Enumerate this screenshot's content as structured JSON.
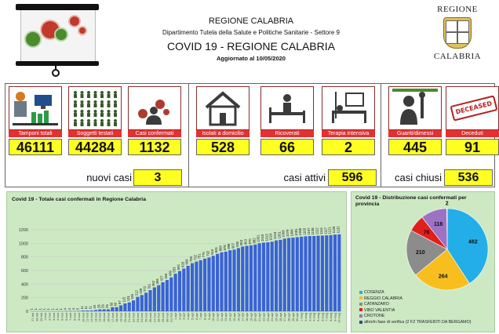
{
  "header": {
    "region": "REGIONE CALABRIA",
    "department": "Dipartimento Tutela della Salute e Politiche Sanitarie - Settore 9",
    "title": "COVID 19 - REGIONE CALABRIA",
    "updated": "Aggiornato al  10/05/2020",
    "coat_top": "REGIONE",
    "coat_bottom": "CALABRIA"
  },
  "icons": [
    "virus-icon",
    "lab-test-icon",
    "tested-people-icon",
    "confirmed-case-icon",
    "home-isolation-icon",
    "hospital-bed-icon",
    "intensive-care-icon",
    "recovered-person-icon",
    "deceased-stamp-icon"
  ],
  "colors": {
    "label_red": "#e53030",
    "number_yellow": "#ffff22",
    "panel_green": "#cde9c4",
    "bar_blue": "#3a62d8"
  },
  "stats": {
    "tamponi": {
      "label": "Tamponi totali",
      "value": "46111"
    },
    "soggetti": {
      "label": "Soggetti testati",
      "value": "44284"
    },
    "confermati": {
      "label": "Casi confermati",
      "value": "1132"
    },
    "isolati": {
      "label": "Isolati a domicilio",
      "value": "528"
    },
    "ricoverati": {
      "label": "Ricoverati",
      "value": "66"
    },
    "terapia": {
      "label": "Terapia intensiva",
      "value": "2"
    },
    "guariti": {
      "label": "Guariti/dimessi",
      "value": "445"
    },
    "deceduti": {
      "label": "Deceduti",
      "value": "91"
    },
    "deceased_stamp": "DECEASED"
  },
  "summary": {
    "nuovi_label": "nuovi casi",
    "nuovi_value": "3",
    "attivi_label": "casi attivi",
    "attivi_value": "596",
    "chiusi_label": "casi chiusi",
    "chiusi_value": "536"
  },
  "chart_data": [
    {
      "type": "bar",
      "title": "Covid 19 - Totale casi confermati in Regione Calabria",
      "ylim": [
        0,
        1200
      ],
      "yticks": [
        0,
        200,
        400,
        600,
        800,
        1000,
        1200
      ],
      "grid": true,
      "categories": [
        "27-feb",
        "28-feb",
        "29-feb",
        "1-mar",
        "2-mar",
        "3-mar",
        "4-mar",
        "5-mar",
        "6-mar",
        "7-mar",
        "8-mar",
        "9-mar",
        "10-mar",
        "11-mar",
        "12-mar",
        "13-mar",
        "14-mar",
        "15-mar",
        "16-mar",
        "17-mar",
        "18-mar",
        "19-mar",
        "20-mar",
        "21-mar",
        "22-mar",
        "23-mar",
        "24-mar",
        "25-mar",
        "26-mar",
        "27-mar",
        "28-mar",
        "29-mar",
        "30-mar",
        "31-mar",
        "1-apr",
        "2-apr",
        "3-apr",
        "4-apr",
        "5-apr",
        "6-apr",
        "7-apr",
        "8-apr",
        "9-apr",
        "10-apr",
        "11-apr",
        "12-apr",
        "13-apr",
        "14-apr",
        "15-apr",
        "16-apr",
        "17-apr",
        "18-apr",
        "19-apr",
        "20-apr",
        "21-apr",
        "22-apr",
        "23-apr",
        "24-apr",
        "25-apr",
        "26-apr",
        "27-apr",
        "28-apr",
        "29-apr",
        "30-apr",
        "1-mag",
        "2-mag",
        "3-mag",
        "4-mag",
        "5-mag",
        "6-mag",
        "7-mag",
        "8-mag",
        "9-mag",
        "10-mag"
      ],
      "values": [
        1,
        1,
        1,
        1,
        1,
        1,
        1,
        1,
        4,
        4,
        4,
        5,
        11,
        11,
        11,
        19,
        28,
        29,
        29,
        60,
        60,
        87,
        115,
        131,
        160,
        212,
        239,
        272,
        311,
        352,
        384,
        427,
        460,
        499,
        553,
        592,
        628,
        669,
        708,
        732,
        751,
        775,
        792,
        816,
        845,
        868,
        878,
        898,
        907,
        930,
        953,
        963,
        970,
        982,
        1001,
        1010,
        1015,
        1024,
        1043,
        1051,
        1069,
        1079,
        1084,
        1091,
        1098,
        1103,
        1107,
        1108,
        1112,
        1114,
        1117,
        1121,
        1129,
        1132
      ]
    },
    {
      "type": "pie",
      "title": "Covid 19 - Distribuzione casi confermati per provincia",
      "categories": [
        "COSENZA",
        "REGGIO CALABRIA",
        "CATANZARO",
        "VIBO VALENTIA",
        "CROTONE",
        "altro/in fase di verifica (2 FZ TRASFERITI DA BERGAMO)"
      ],
      "values": [
        462,
        264,
        210,
        76,
        118,
        2
      ],
      "colors": [
        "#23aee8",
        "#f7be1e",
        "#8c8c8c",
        "#e0201e",
        "#9b72c4",
        "#2b4f8c"
      ],
      "legend_position": "bottom"
    }
  ]
}
